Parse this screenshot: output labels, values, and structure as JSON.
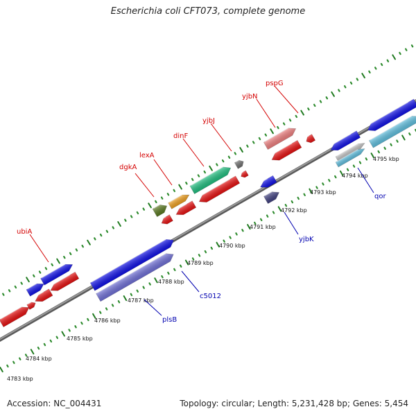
{
  "title": "Escherichia coli CFT073, complete genome",
  "accession": "Accession: NC_004431",
  "summary": "Topology: circular; Length: 5,231,428 bp; Genes: 5,454",
  "colors": {
    "backbone": "#8a8a8a",
    "ruler_dots": "#2e8b2e",
    "ruler_ticks": "#1f7a1f",
    "label_top": "#d40000",
    "label_bottom": "#0000b0"
  },
  "ruler": {
    "kbp_labels": [
      "4783 kbp",
      "4784 kbp",
      "4785 kbp",
      "4786 kbp",
      "4787 kbp",
      "4788 kbp",
      "4789 kbp",
      "4790 kbp",
      "4791 kbp",
      "4792 kbp",
      "4793 kbp",
      "4794 kbp",
      "4795 kbp"
    ]
  },
  "labels_top": [
    {
      "text": "ubiA",
      "color": "#d40000"
    },
    {
      "text": "dgkA",
      "color": "#d40000"
    },
    {
      "text": "lexA",
      "color": "#d40000"
    },
    {
      "text": "dinF",
      "color": "#d40000"
    },
    {
      "text": "yjbJ",
      "color": "#d40000"
    },
    {
      "text": "yjbN",
      "color": "#d40000"
    },
    {
      "text": "pspG",
      "color": "#d40000"
    }
  ],
  "labels_bottom": [
    {
      "text": "plsB",
      "color": "#0000b0"
    },
    {
      "text": "c5012",
      "color": "#0000b0"
    },
    {
      "text": "yjbK",
      "color": "#0000b0"
    },
    {
      "text": "qor",
      "color": "#0000b0"
    }
  ],
  "feature_colors": [
    "#1010e8",
    "#e81010",
    "#7070d8",
    "#20c080",
    "#f08080",
    "#60c0e0",
    "#707070",
    "#404080",
    "#5a7a20",
    "#f0a020"
  ]
}
